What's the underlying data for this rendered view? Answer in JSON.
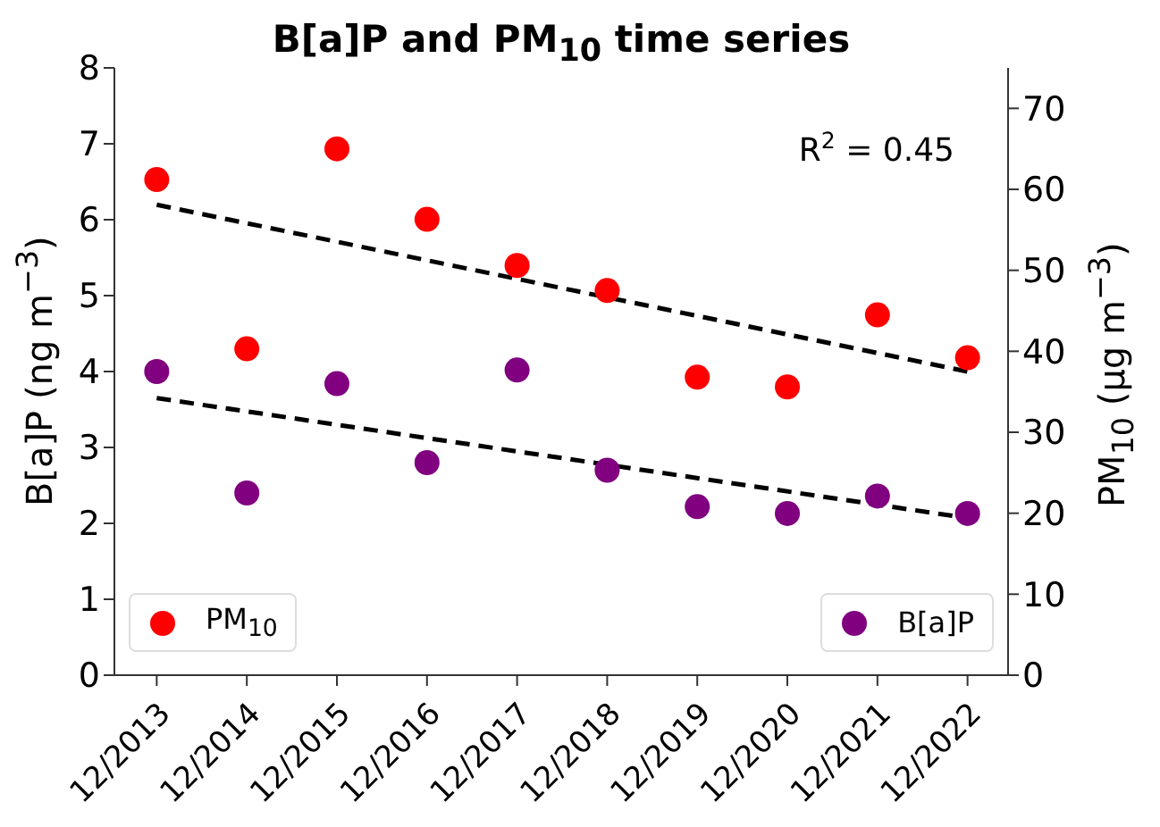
{
  "chart_data": {
    "type": "scatter",
    "title": "B[a]P and PM$_{10}$ time series",
    "ylabel": "B[a]P (ng m$^{−3}$)",
    "y2label": "PM$_{10}$ (µg m$^{−3}$)",
    "annotations": [
      "R$^{2}$ = 0.45"
    ],
    "categories": [
      "12/2013",
      "12/2014",
      "12/2015",
      "12/2016",
      "12/2017",
      "12/2018",
      "12/2019",
      "12/2020",
      "12/2021",
      "12/2022"
    ],
    "ylim": [
      0,
      8
    ],
    "yticks": [
      0,
      1,
      2,
      3,
      4,
      5,
      6,
      7,
      8
    ],
    "y2lim": [
      0,
      75
    ],
    "y2ticks": [
      0,
      10,
      20,
      30,
      40,
      50,
      60,
      70
    ],
    "legend": "bottom",
    "marker": "circle",
    "series": [
      {
        "name": "PM$_{10}$",
        "color": "#ff0000",
        "axis": "y2",
        "values": [
          61.2,
          40.3,
          65.0,
          56.3,
          50.6,
          47.5,
          36.8,
          35.6,
          44.5,
          39.2
        ]
      },
      {
        "name": "B[a]P",
        "color": "#800080",
        "values": [
          4.0,
          2.4,
          3.84,
          2.8,
          4.02,
          2.7,
          2.22,
          2.13,
          2.36,
          2.13
        ]
      },
      {
        "type": "line",
        "color": "#000000",
        "axis": "y2",
        "line_style": "dashed",
        "marker": "none",
        "x": [
          "12/2013",
          "12/2022"
        ],
        "values": [
          58.1,
          37.5
        ]
      },
      {
        "type": "line",
        "color": "#000000",
        "line_style": "dashed",
        "marker": "none",
        "x": [
          "12/2013",
          "12/2022"
        ],
        "values": [
          3.65,
          2.07
        ]
      }
    ]
  }
}
